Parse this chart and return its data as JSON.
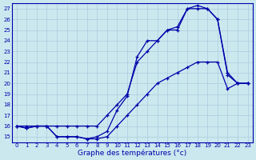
{
  "xlabel": "Graphe des températures (°c)",
  "background_color": "#cce8ef",
  "line_color": "#0000aa",
  "hours": [
    0,
    1,
    2,
    3,
    4,
    5,
    6,
    7,
    8,
    9,
    10,
    11,
    12,
    13,
    14,
    15,
    16,
    17,
    18,
    19,
    20,
    21,
    22,
    23
  ],
  "series1": [
    16,
    16,
    16,
    16,
    16,
    16,
    16,
    16,
    16,
    17,
    18,
    19,
    22,
    23,
    24,
    25,
    25,
    27,
    27,
    27,
    26,
    21,
    20,
    20
  ],
  "series2": [
    16,
    15.8,
    16,
    16,
    15,
    15,
    15,
    14.8,
    15,
    15.5,
    17.5,
    18.8,
    22.5,
    24,
    24,
    25,
    25.3,
    27,
    27.3,
    27,
    26,
    20.8,
    20,
    20
  ],
  "series3": [
    16,
    15.8,
    16,
    16,
    15,
    15,
    15,
    14.8,
    14.8,
    15,
    16,
    17,
    18,
    19,
    20,
    20.5,
    21,
    21.5,
    22,
    22,
    22,
    19.5,
    20,
    20
  ],
  "ylim": [
    14.5,
    27.5
  ],
  "xlim": [
    -0.5,
    23.5
  ],
  "yticks": [
    15,
    16,
    17,
    18,
    19,
    20,
    21,
    22,
    23,
    24,
    25,
    26,
    27
  ],
  "xticks": [
    0,
    1,
    2,
    3,
    4,
    5,
    6,
    7,
    8,
    9,
    10,
    11,
    12,
    13,
    14,
    15,
    16,
    17,
    18,
    19,
    20,
    21,
    22,
    23
  ]
}
